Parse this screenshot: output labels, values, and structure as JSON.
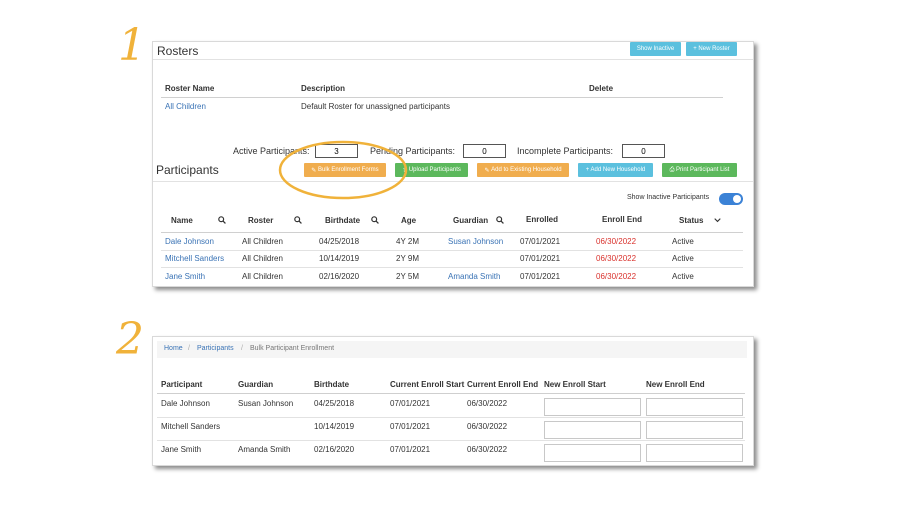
{
  "steps": [
    "1",
    "2"
  ],
  "rosters": {
    "title": "Rosters",
    "show_inactive_label": "Show Inactive",
    "new_roster_label": "+ New Roster",
    "columns": [
      "Roster Name",
      "Description",
      "Delete"
    ],
    "rows": [
      {
        "name": "All Children",
        "description": "Default Roster for unassigned participants"
      }
    ]
  },
  "counts": {
    "active_label": "Active Participants:",
    "active_value": "3",
    "pending_label": "Pending Participants:",
    "pending_value": "0",
    "incomplete_label": "Incomplete Participants:",
    "incomplete_value": "0"
  },
  "participants": {
    "title": "Participants",
    "buttons": {
      "bulk_enrollment": "Bulk Enrollment Forms",
      "upload": "Upload Participants",
      "add_existing": "Add to Existing Household",
      "add_new": "+ Add New Household",
      "print": "Print Participant List"
    },
    "show_inactive_label": "Show Inactive Participants",
    "columns": [
      "Name",
      "Roster",
      "Birthdate",
      "Age",
      "Guardian",
      "Enrolled",
      "Enroll End",
      "Status"
    ],
    "rows": [
      {
        "name": "Dale Johnson",
        "roster": "All Children",
        "birthdate": "04/25/2018",
        "age": "4Y 2M",
        "guardian": "Susan Johnson",
        "enrolled": "07/01/2021",
        "enroll_end": "06/30/2022",
        "status": "Active"
      },
      {
        "name": "Mitchell Sanders",
        "roster": "All Children",
        "birthdate": "10/14/2019",
        "age": "2Y 9M",
        "guardian": "",
        "enrolled": "07/01/2021",
        "enroll_end": "06/30/2022",
        "status": "Active"
      },
      {
        "name": "Jane Smith",
        "roster": "All Children",
        "birthdate": "02/16/2020",
        "age": "2Y 5M",
        "guardian": "Amanda Smith",
        "enrolled": "07/01/2021",
        "enroll_end": "06/30/2022",
        "status": "Active"
      }
    ]
  },
  "highlight_color": "#f0b23a",
  "bulk": {
    "breadcrumb": {
      "home": "Home",
      "participants": "Participants",
      "current": "Bulk Participant Enrollment"
    },
    "columns": [
      "Participant",
      "Guardian",
      "Birthdate",
      "Current Enroll Start",
      "Current Enroll End",
      "New Enroll Start",
      "New Enroll End"
    ],
    "rows": [
      {
        "participant": "Dale Johnson",
        "guardian": "Susan Johnson",
        "birthdate": "04/25/2018",
        "start": "07/01/2021",
        "end": "06/30/2022"
      },
      {
        "participant": "Mitchell Sanders",
        "guardian": "",
        "birthdate": "10/14/2019",
        "start": "07/01/2021",
        "end": "06/30/2022"
      },
      {
        "participant": "Jane Smith",
        "guardian": "Amanda Smith",
        "birthdate": "02/16/2020",
        "start": "07/01/2021",
        "end": "06/30/2022"
      }
    ]
  }
}
